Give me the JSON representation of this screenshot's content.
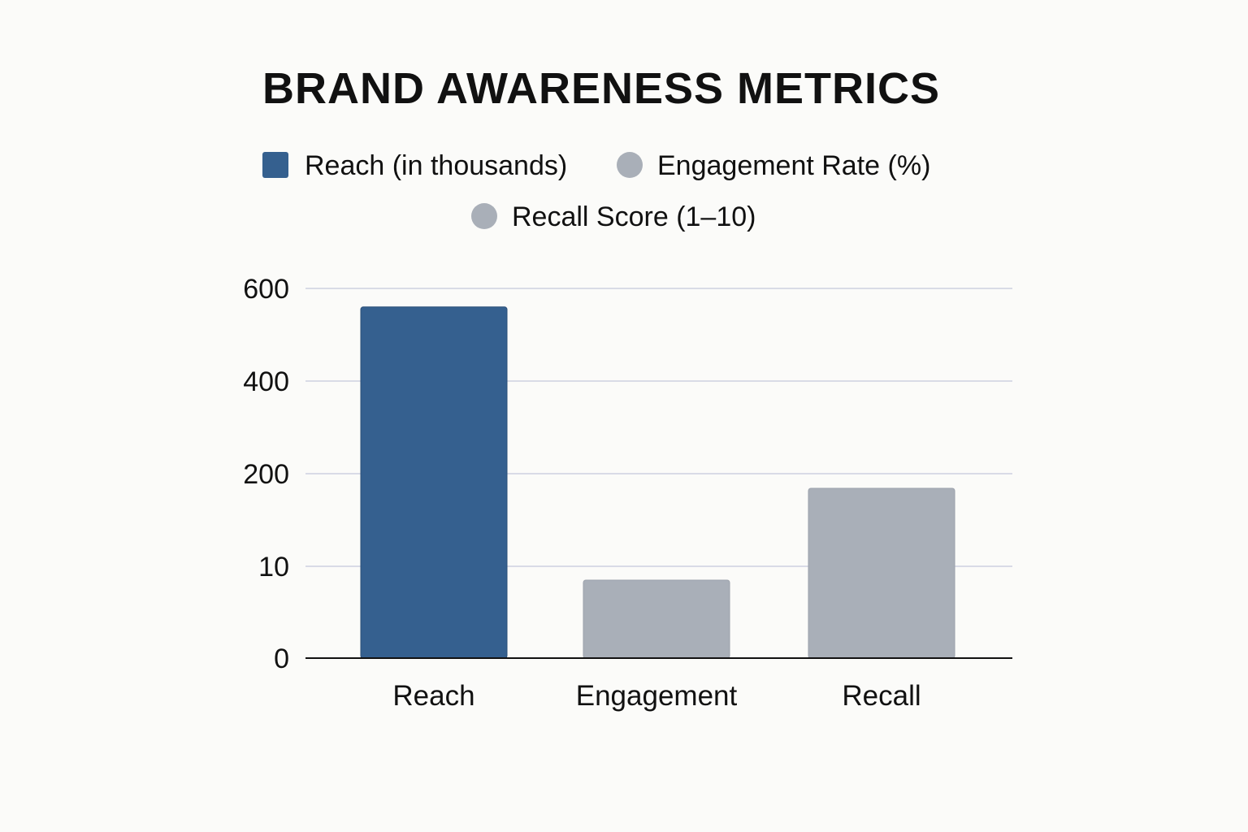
{
  "chart_data": {
    "type": "bar",
    "title": "BRAND AWARENESS METRICS",
    "xlabel": "",
    "ylabel": "",
    "categories": [
      "Reach",
      "Engagement",
      "Recall"
    ],
    "values": [
      560,
      8.5,
      170
    ],
    "bar_colors": [
      "#35608f",
      "#a9afb8",
      "#a9afb8"
    ],
    "y_ticks": [
      {
        "label": "600",
        "value": 600
      },
      {
        "label": "400",
        "value": 400
      },
      {
        "label": "200",
        "value": 200
      },
      {
        "label": "10",
        "value": 10
      },
      {
        "label": "0",
        "value": 0
      }
    ],
    "legend": [
      {
        "label": "Reach (in thousands)",
        "color": "#35608f",
        "marker": "square"
      },
      {
        "label": "Engagement Rate (%)",
        "color": "#a9afb8",
        "marker": "circle"
      },
      {
        "label": "Recall Score (1–10)",
        "color": "#a9afb8",
        "marker": "circle"
      }
    ],
    "legend_position": "top-center",
    "grid": true,
    "colors": {
      "grid": "#d9dbe6",
      "axis": "#111111",
      "text": "#111111"
    }
  }
}
